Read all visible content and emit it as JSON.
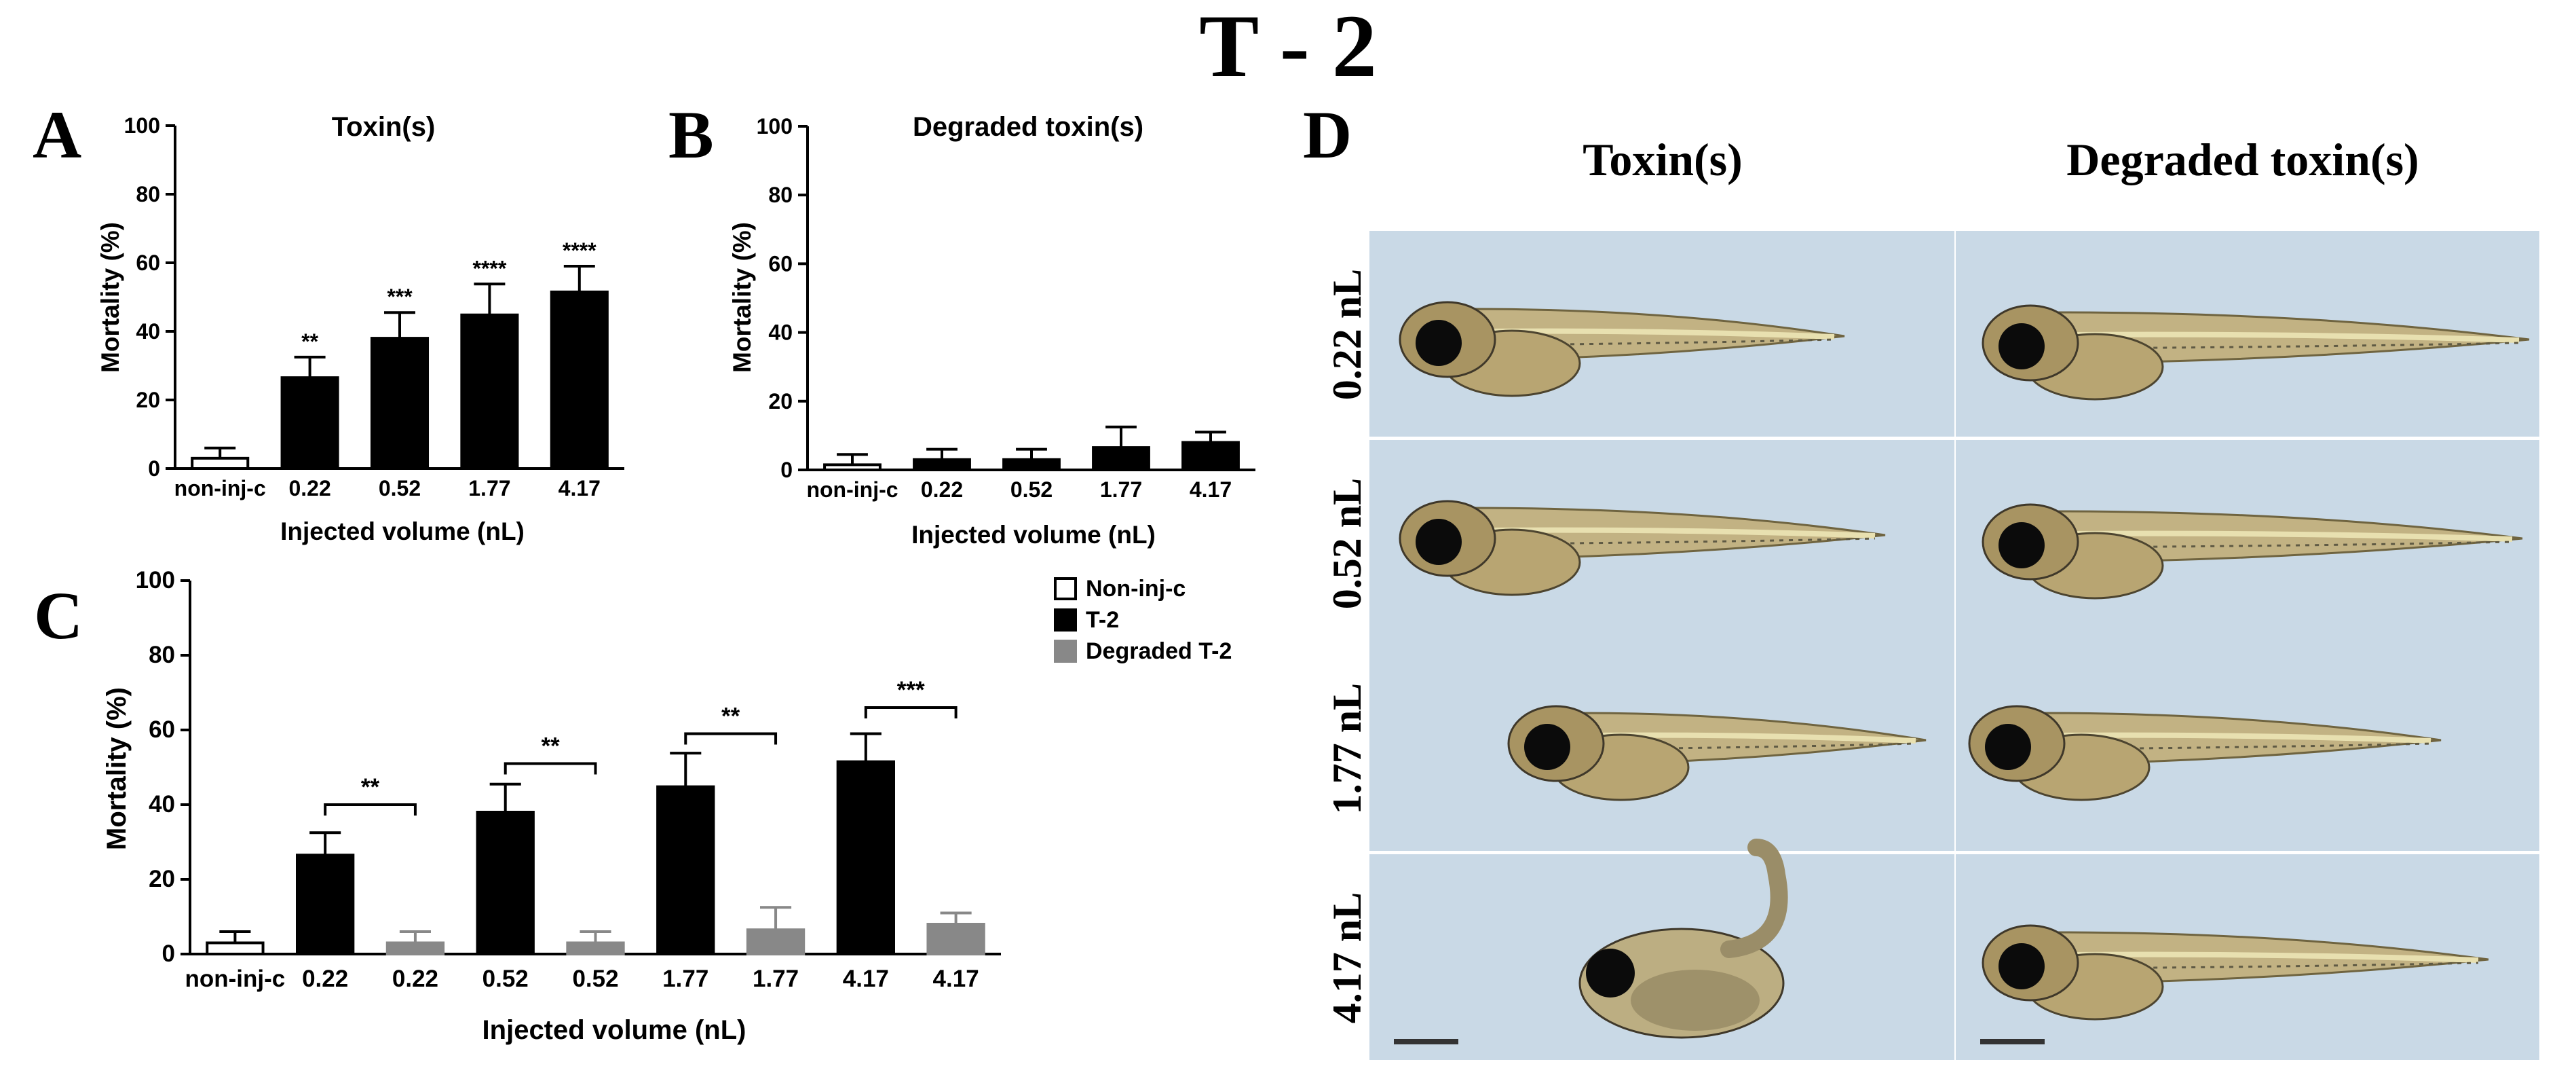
{
  "figure_title": "T - 2",
  "chart_data": [
    {
      "panel": "A",
      "type": "bar",
      "title": "Toxin(s)",
      "xlabel": "Injected volume (nL)",
      "ylabel": "Mortality (%)",
      "ylim": [
        0,
        100
      ],
      "yticks": [
        0,
        20,
        40,
        60,
        80,
        100
      ],
      "categories": [
        "non-inj-c",
        "0.22",
        "0.52",
        "1.77",
        "4.17"
      ],
      "values": [
        3,
        26.5,
        38,
        44.8,
        51.5
      ],
      "errors": [
        3,
        6,
        7.5,
        9,
        7.5
      ],
      "fills": [
        "#ffffff",
        "#000000",
        "#000000",
        "#000000",
        "#000000"
      ],
      "significance": [
        "",
        "**",
        "***",
        "****",
        "****"
      ],
      "grid": false
    },
    {
      "panel": "B",
      "type": "bar",
      "title": "Degraded toxin(s)",
      "xlabel": "Injected volume (nL)",
      "ylabel": "Mortality (%)",
      "ylim": [
        0,
        100
      ],
      "yticks": [
        0,
        20,
        40,
        60,
        80,
        100
      ],
      "categories": [
        "non-inj-c",
        "0.22",
        "0.52",
        "1.77",
        "4.17"
      ],
      "values": [
        1.5,
        3,
        3,
        6.5,
        8
      ],
      "errors": [
        3,
        3,
        3,
        6,
        3
      ],
      "fills": [
        "#ffffff",
        "#000000",
        "#000000",
        "#000000",
        "#000000"
      ],
      "significance": [
        "",
        "",
        "",
        "",
        ""
      ],
      "grid": false
    },
    {
      "panel": "C",
      "type": "bar",
      "title": "",
      "xlabel": "Injected volume (nL)",
      "ylabel": "Mortality (%)",
      "ylim": [
        0,
        100
      ],
      "yticks": [
        0,
        20,
        40,
        60,
        80,
        100
      ],
      "categories": [
        "non-inj-c",
        "0.22",
        "0.22",
        "0.52",
        "0.52",
        "1.77",
        "1.77",
        "4.17",
        "4.17"
      ],
      "values": [
        3,
        26.5,
        3,
        38,
        3,
        44.8,
        6.5,
        51.5,
        8
      ],
      "errors": [
        3,
        6,
        3,
        7.5,
        3,
        9,
        6,
        7.5,
        3
      ],
      "groups": [
        "Non-inj-c",
        "T-2",
        "Degraded T-2",
        "T-2",
        "Degraded T-2",
        "T-2",
        "Degraded T-2",
        "T-2",
        "Degraded T-2"
      ],
      "legend": [
        {
          "name": "Non-inj-c",
          "color": "#ffffff"
        },
        {
          "name": "T-2",
          "color": "#000000"
        },
        {
          "name": "Degraded T-2",
          "color": "#888888"
        }
      ],
      "legend_position": "top-right",
      "comparisons": [
        {
          "from": 1,
          "to": 2,
          "label": "**",
          "y": 40
        },
        {
          "from": 3,
          "to": 4,
          "label": "**",
          "y": 51
        },
        {
          "from": 5,
          "to": 6,
          "label": "**",
          "y": 59
        },
        {
          "from": 7,
          "to": 8,
          "label": "***",
          "y": 66
        }
      ],
      "grid": false
    }
  ],
  "panel_d": {
    "label": "D",
    "column_headers": [
      "Toxin(s)",
      "Degraded toxin(s)"
    ],
    "row_labels": [
      "0.22 nL",
      "0.52 nL",
      "1.77 nL",
      "4.17 nL"
    ],
    "colors": {
      "background": "#c9d9e6",
      "body": "#c2b283",
      "stripe": "#e8e0b0",
      "eye": "#0b0b0b"
    }
  }
}
